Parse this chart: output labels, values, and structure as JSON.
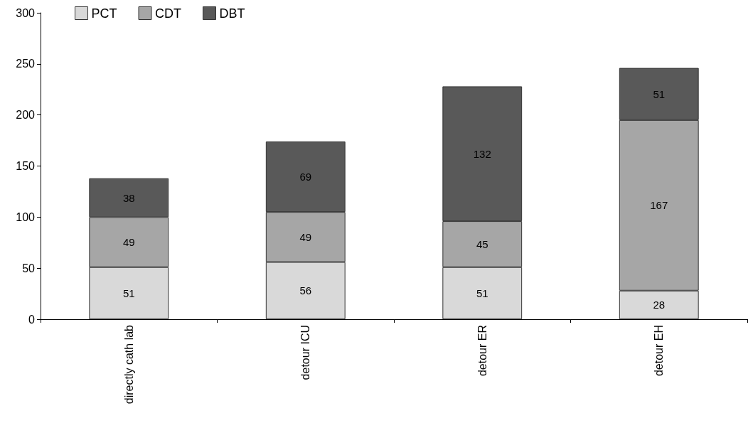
{
  "chart_data": {
    "type": "bar",
    "stacked": true,
    "categories": [
      "directly cath lab",
      "detour ICU",
      "detour ER",
      "detour EH"
    ],
    "series": [
      {
        "name": "PCT",
        "color": "#d9d9d9",
        "values": [
          51,
          56,
          51,
          28
        ]
      },
      {
        "name": "CDT",
        "color": "#a6a6a6",
        "values": [
          49,
          49,
          45,
          167
        ]
      },
      {
        "name": "DBT",
        "color": "#595959",
        "values": [
          38,
          69,
          132,
          51
        ]
      }
    ],
    "ylim": [
      0,
      300
    ],
    "yticks": [
      0,
      50,
      100,
      150,
      200,
      250,
      300
    ],
    "grid": false,
    "legend": "top left",
    "data_labels": true
  }
}
